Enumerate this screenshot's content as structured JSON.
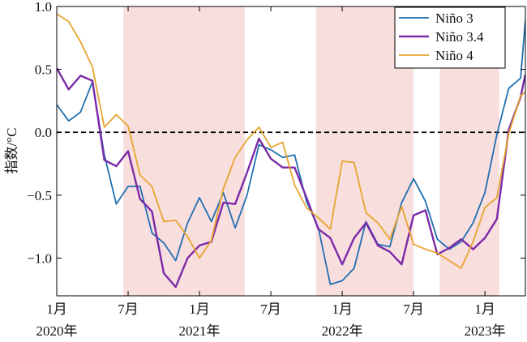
{
  "chart_data": {
    "type": "line",
    "ylabel": "指数/°C",
    "ylim": [
      -1.3,
      1.0
    ],
    "yticks": [
      1.0,
      0.5,
      0.0,
      -0.5,
      -1.0
    ],
    "ytick_labels": [
      "1.0",
      "0.5",
      "0.0",
      "−0.5",
      "−1.0"
    ],
    "xlim": [
      0,
      39.4
    ],
    "xticks": [
      {
        "x": 0,
        "month": "1月",
        "year": "2020年"
      },
      {
        "x": 6,
        "month": "7月",
        "year": ""
      },
      {
        "x": 12,
        "month": "1月",
        "year": "2021年"
      },
      {
        "x": 18,
        "month": "7月",
        "year": ""
      },
      {
        "x": 24,
        "month": "1月",
        "year": "2022年"
      },
      {
        "x": 30,
        "month": "7月",
        "year": ""
      },
      {
        "x": 36,
        "month": "1月",
        "year": "2023年"
      }
    ],
    "shaded_regions": [
      [
        5.6,
        15.8
      ],
      [
        21.8,
        30.0
      ],
      [
        32.2,
        37.2
      ]
    ],
    "shade_color": "#f9dede",
    "zero_line": {
      "y": 0.0,
      "style": "dashed",
      "color": "#000000"
    },
    "grid": false,
    "legend_position": "top-right",
    "series": [
      {
        "name": "Niño 3",
        "color": "#1f6fb0",
        "x": [
          0,
          1,
          2,
          3,
          4,
          5,
          6,
          7,
          8,
          9,
          10,
          11,
          12,
          13,
          14,
          15,
          16,
          17,
          18,
          19,
          20,
          21,
          22,
          23,
          24,
          25,
          26,
          27,
          28,
          29,
          30,
          31,
          32,
          33,
          34,
          35,
          36,
          37,
          38,
          39,
          39.4
        ],
        "values": [
          0.22,
          0.09,
          0.16,
          0.4,
          -0.18,
          -0.57,
          -0.43,
          -0.43,
          -0.8,
          -0.88,
          -1.02,
          -0.72,
          -0.52,
          -0.71,
          -0.48,
          -0.76,
          -0.5,
          -0.1,
          -0.14,
          -0.2,
          -0.18,
          -0.55,
          -0.76,
          -1.21,
          -1.18,
          -1.08,
          -0.71,
          -0.89,
          -0.91,
          -0.56,
          -0.37,
          -0.55,
          -0.85,
          -0.93,
          -0.87,
          -0.72,
          -0.48,
          -0.02,
          0.35,
          0.43,
          0.89
        ]
      },
      {
        "name": "Niño 3.4",
        "color": "#7a2aa8",
        "x": [
          0,
          1,
          2,
          3,
          4,
          5,
          6,
          7,
          8,
          9,
          10,
          11,
          12,
          13,
          14,
          15,
          16,
          17,
          18,
          19,
          20,
          21,
          22,
          23,
          24,
          25,
          26,
          27,
          28,
          29,
          30,
          31,
          32,
          33,
          34,
          35,
          36,
          37,
          38,
          39,
          39.4
        ],
        "values": [
          0.51,
          0.34,
          0.45,
          0.41,
          -0.22,
          -0.27,
          -0.15,
          -0.53,
          -0.63,
          -1.12,
          -1.23,
          -1.0,
          -0.9,
          -0.87,
          -0.56,
          -0.57,
          -0.32,
          -0.05,
          -0.21,
          -0.28,
          -0.28,
          -0.52,
          -0.77,
          -0.84,
          -1.05,
          -0.84,
          -0.72,
          -0.9,
          -0.95,
          -1.05,
          -0.66,
          -0.62,
          -0.97,
          -0.92,
          -0.85,
          -0.93,
          -0.84,
          -0.69,
          0.02,
          0.28,
          0.46
        ]
      },
      {
        "name": "Niño 4",
        "color": "#e6a52e",
        "x": [
          0,
          1,
          2,
          3,
          4,
          5,
          6,
          7,
          8,
          9,
          10,
          11,
          12,
          13,
          14,
          15,
          16,
          17,
          18,
          19,
          20,
          21,
          22,
          23,
          24,
          25,
          26,
          27,
          28,
          29,
          30,
          31,
          32,
          33,
          34,
          35,
          36,
          37,
          38,
          39,
          39.4
        ],
        "values": [
          0.94,
          0.88,
          0.72,
          0.52,
          0.04,
          0.14,
          0.05,
          -0.34,
          -0.43,
          -0.71,
          -0.7,
          -0.83,
          -1.0,
          -0.86,
          -0.45,
          -0.2,
          -0.06,
          0.04,
          -0.12,
          -0.08,
          -0.42,
          -0.6,
          -0.68,
          -0.77,
          -0.23,
          -0.24,
          -0.64,
          -0.72,
          -0.85,
          -0.59,
          -0.89,
          -0.93,
          -0.96,
          -1.02,
          -1.08,
          -0.87,
          -0.6,
          -0.52,
          -0.01,
          0.29,
          0.32
        ]
      }
    ]
  }
}
